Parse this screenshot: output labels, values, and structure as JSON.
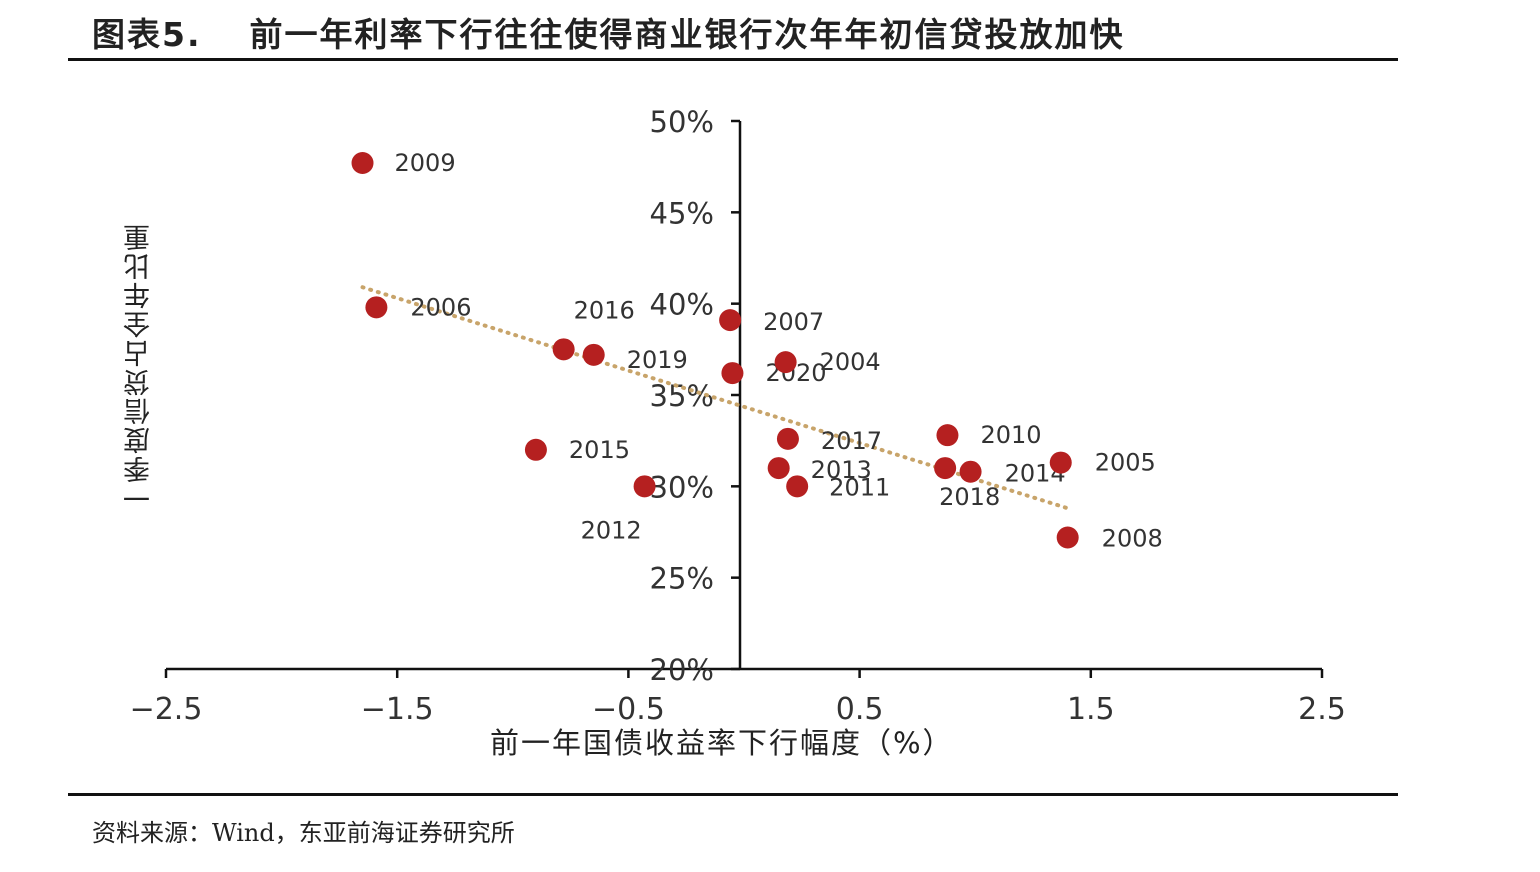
{
  "header": {
    "figure_label": "图表5.",
    "title": "前一年利率下行往往使得商业银行次年年初信贷投放加快"
  },
  "footer": {
    "source": "资料来源：Wind，东亚前海证券研究所"
  },
  "colors": {
    "point": "#b52020",
    "trend": "#c8a46a",
    "axis": "#111111",
    "text": "#333333"
  },
  "chart_data": {
    "type": "scatter",
    "xlabel": "前一年国债收益率下行幅度（%）",
    "ylabel": "一季度信贷占全年比重",
    "xlim": [
      -2.5,
      2.5
    ],
    "ylim": [
      20,
      50
    ],
    "x_ticks": [
      -2.5,
      -1.5,
      -0.5,
      0.5,
      1.5,
      2.5
    ],
    "x_tick_labels": [
      "−2.5",
      "−1.5",
      "−0.5",
      "0.5",
      "1.5",
      "2.5"
    ],
    "y_ticks": [
      20,
      25,
      30,
      35,
      40,
      45,
      50
    ],
    "y_tick_labels": [
      "20%",
      "25%",
      "30%",
      "35%",
      "40%",
      "45%",
      "50%"
    ],
    "trendline": {
      "style": "dotted",
      "x": [
        -1.65,
        1.4
      ],
      "y": [
        40.9,
        28.8
      ]
    },
    "points": [
      {
        "year": "2009",
        "x": -1.65,
        "y": 47.7
      },
      {
        "year": "2006",
        "x": -1.59,
        "y": 39.8
      },
      {
        "year": "2016",
        "x": -0.78,
        "y": 37.5
      },
      {
        "year": "2019",
        "x": -0.65,
        "y": 37.2
      },
      {
        "year": "2015",
        "x": -0.9,
        "y": 32.0
      },
      {
        "year": "2012",
        "x": -0.43,
        "y": 30.0
      },
      {
        "year": "2007",
        "x": -0.06,
        "y": 39.1
      },
      {
        "year": "2020",
        "x": -0.05,
        "y": 36.2
      },
      {
        "year": "2004",
        "x": 0.18,
        "y": 36.8
      },
      {
        "year": "2017",
        "x": 0.19,
        "y": 32.6
      },
      {
        "year": "2013",
        "x": 0.15,
        "y": 31.0
      },
      {
        "year": "2011",
        "x": 0.23,
        "y": 30.0
      },
      {
        "year": "2010",
        "x": 0.88,
        "y": 32.8
      },
      {
        "year": "2018",
        "x": 0.87,
        "y": 31.0
      },
      {
        "year": "2014",
        "x": 0.98,
        "y": 30.8
      },
      {
        "year": "2005",
        "x": 1.37,
        "y": 31.3
      },
      {
        "year": "2008",
        "x": 1.4,
        "y": 27.2
      }
    ]
  }
}
